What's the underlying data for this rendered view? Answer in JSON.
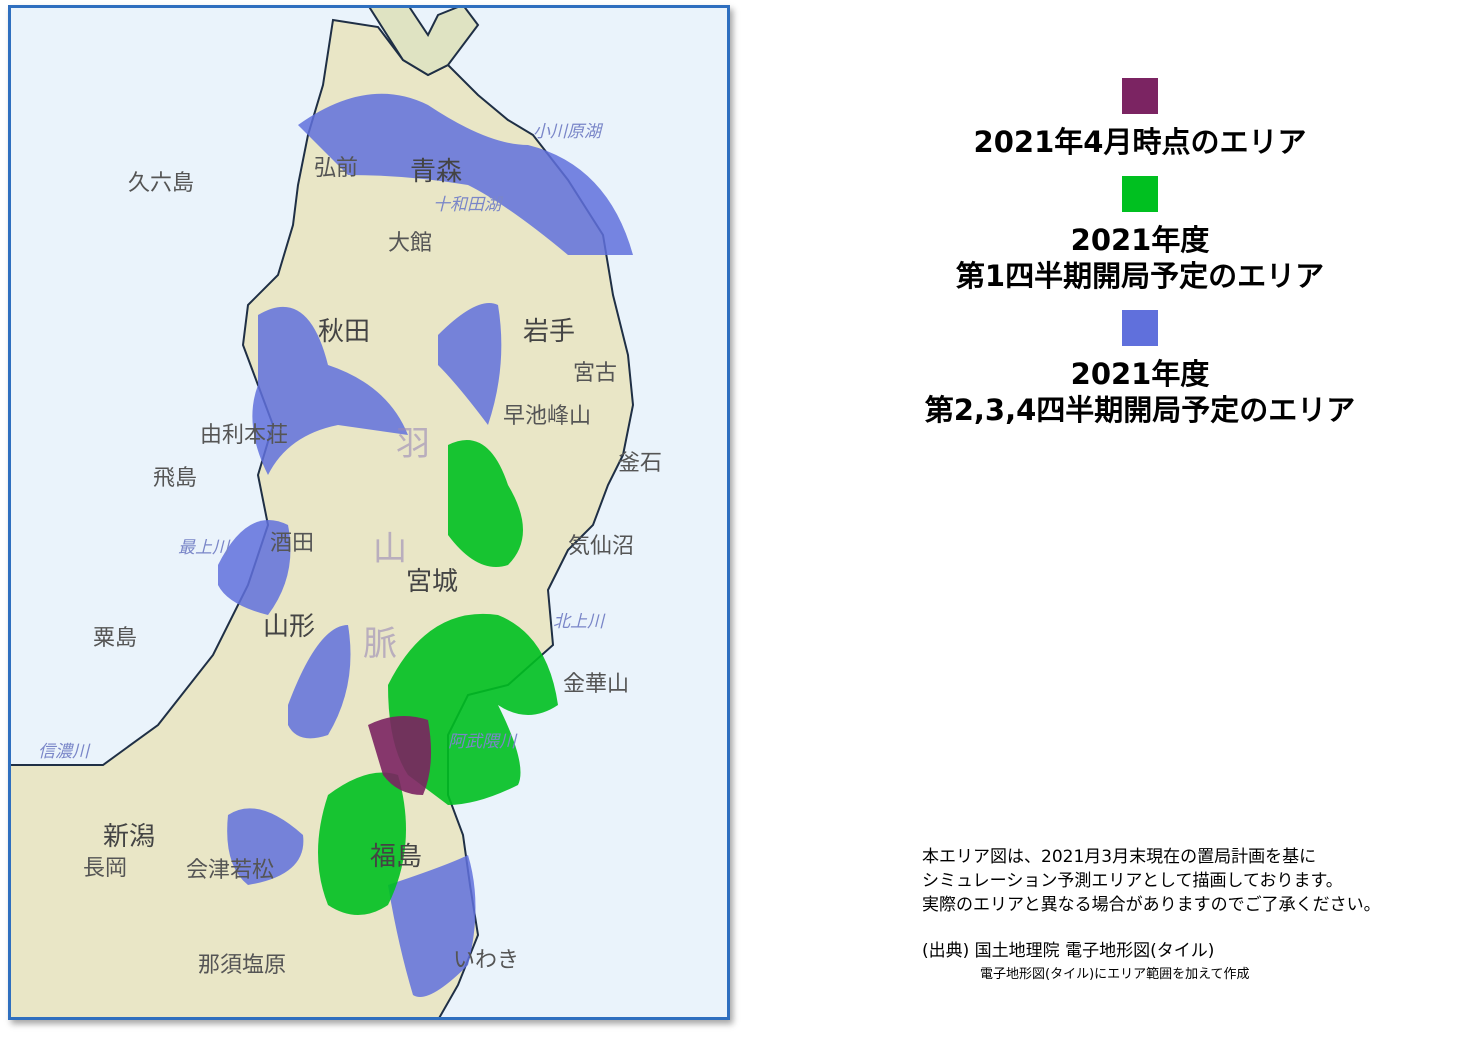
{
  "map": {
    "labels": [
      "青森",
      "秋田",
      "岩手",
      "山形",
      "宮城",
      "福島",
      "新潟",
      "弘前",
      "大館",
      "宮古",
      "釜石",
      "気仙沼",
      "久六島",
      "飛島",
      "粟島",
      "由利本荘",
      "酒田",
      "長岡",
      "会津若松",
      "那須塩原",
      "いわき",
      "金華山",
      "早池峰山",
      "十和田湖",
      "小川原湖",
      "北上川",
      "阿武隈川",
      "信濃川",
      "最上川",
      "羽",
      "山",
      "脈"
    ]
  },
  "legend": {
    "items": [
      {
        "color": "#7b2462",
        "lines": [
          "2021年4月時点のエリア"
        ]
      },
      {
        "color": "#00c020",
        "lines": [
          "2021年度",
          "第1四半期開局予定のエリア"
        ]
      },
      {
        "color": "#6070dc",
        "lines": [
          "2021年度",
          "第2,3,4四半期開局予定のエリア"
        ]
      }
    ]
  },
  "note": {
    "lines": [
      "本エリア図は、2021月3月末現在の置局計画を基に",
      "シミュレーション予測エリアとして描画しております。",
      "実際のエリアと異なる場合がありますのでご了承ください。"
    ],
    "source": "(出典)  国土地理院  電子地形図(タイル)",
    "credit": "電子地形図(タイル)にエリア範囲を加えて作成"
  }
}
